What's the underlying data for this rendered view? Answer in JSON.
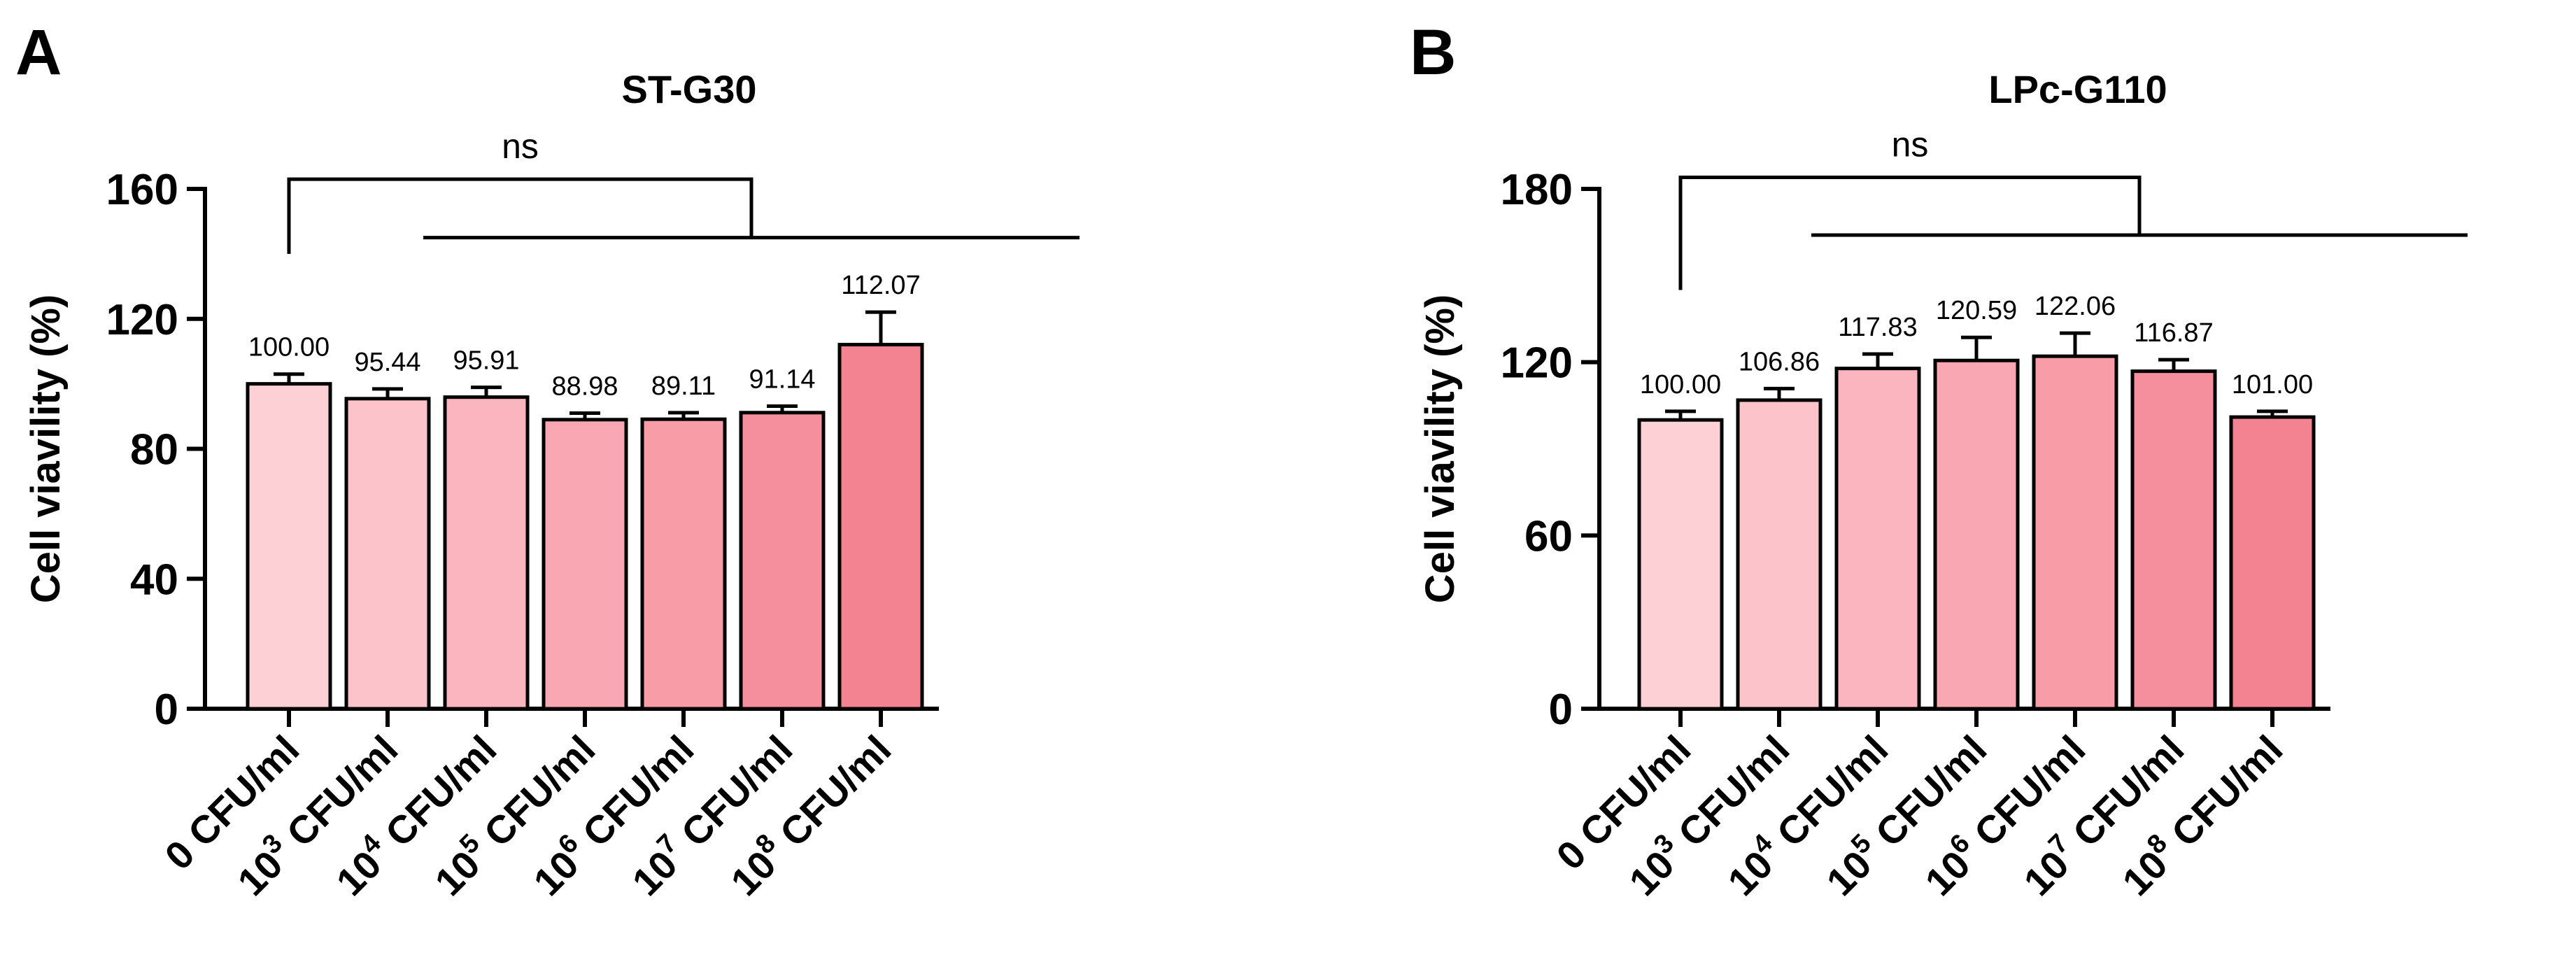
{
  "chart_data": [
    {
      "panel": "A",
      "type": "bar",
      "title": "ST-G30",
      "ylabel": "Cell viavility (%)",
      "xlabel": "",
      "ylim": [
        0,
        160
      ],
      "yticks": [
        "0",
        "40",
        "80",
        "120",
        "160"
      ],
      "categories": [
        {
          "base": "0",
          "exp": "",
          "unit": "CFU/ml"
        },
        {
          "base": "10",
          "exp": "3",
          "unit": "CFU/ml"
        },
        {
          "base": "10",
          "exp": "4",
          "unit": "CFU/ml"
        },
        {
          "base": "10",
          "exp": "5",
          "unit": "CFU/ml"
        },
        {
          "base": "10",
          "exp": "6",
          "unit": "CFU/ml"
        },
        {
          "base": "10",
          "exp": "7",
          "unit": "CFU/ml"
        },
        {
          "base": "10",
          "exp": "8",
          "unit": "CFU/ml"
        }
      ],
      "values": [
        100.0,
        95.44,
        95.91,
        88.98,
        89.11,
        91.14,
        112.07
      ],
      "value_labels": [
        "100.00",
        "95.44",
        "95.91",
        "88.98",
        "89.11",
        "91.14",
        "112.07"
      ],
      "errors": [
        3,
        3,
        3,
        2,
        2,
        2,
        10
      ],
      "colors": [
        "#fdd0d6",
        "#fcc3cb",
        "#fab5bf",
        "#f9a8b3",
        "#f89ca8",
        "#f68f9d",
        "#f48391"
      ],
      "significance": {
        "label": "ns",
        "bracket_top": 163,
        "bracket_drop": 148,
        "group_line": 145,
        "group_from": 1,
        "group_to": 6
      }
    },
    {
      "panel": "B",
      "type": "bar",
      "title": "LPc-G110",
      "ylabel": "Cell viavility (%)",
      "xlabel": "",
      "ylim": [
        0,
        180
      ],
      "yticks": [
        "0",
        "60",
        "120",
        "180"
      ],
      "categories": [
        {
          "base": "0",
          "exp": "",
          "unit": "CFU/ml"
        },
        {
          "base": "10",
          "exp": "3",
          "unit": "CFU/ml"
        },
        {
          "base": "10",
          "exp": "4",
          "unit": "CFU/ml"
        },
        {
          "base": "10",
          "exp": "5",
          "unit": "CFU/ml"
        },
        {
          "base": "10",
          "exp": "6",
          "unit": "CFU/ml"
        },
        {
          "base": "10",
          "exp": "7",
          "unit": "CFU/ml"
        },
        {
          "base": "10",
          "exp": "8",
          "unit": "CFU/ml"
        }
      ],
      "values": [
        100.0,
        106.86,
        117.83,
        120.59,
        122.06,
        116.87,
        101.0
      ],
      "value_labels": [
        "100.00",
        "106.86",
        "117.83",
        "120.59",
        "122.06",
        "116.87",
        "101.00"
      ],
      "errors": [
        3,
        4,
        5,
        8,
        8,
        4,
        2
      ],
      "colors": [
        "#fdd0d6",
        "#fcc3cb",
        "#fab5bf",
        "#f9a8b3",
        "#f89ca8",
        "#f68f9d",
        "#f48391"
      ],
      "significance": {
        "label": "ns",
        "bracket_top": 184,
        "bracket_drop": 160,
        "group_line": 164,
        "group_from": 1,
        "group_to": 6
      }
    }
  ]
}
